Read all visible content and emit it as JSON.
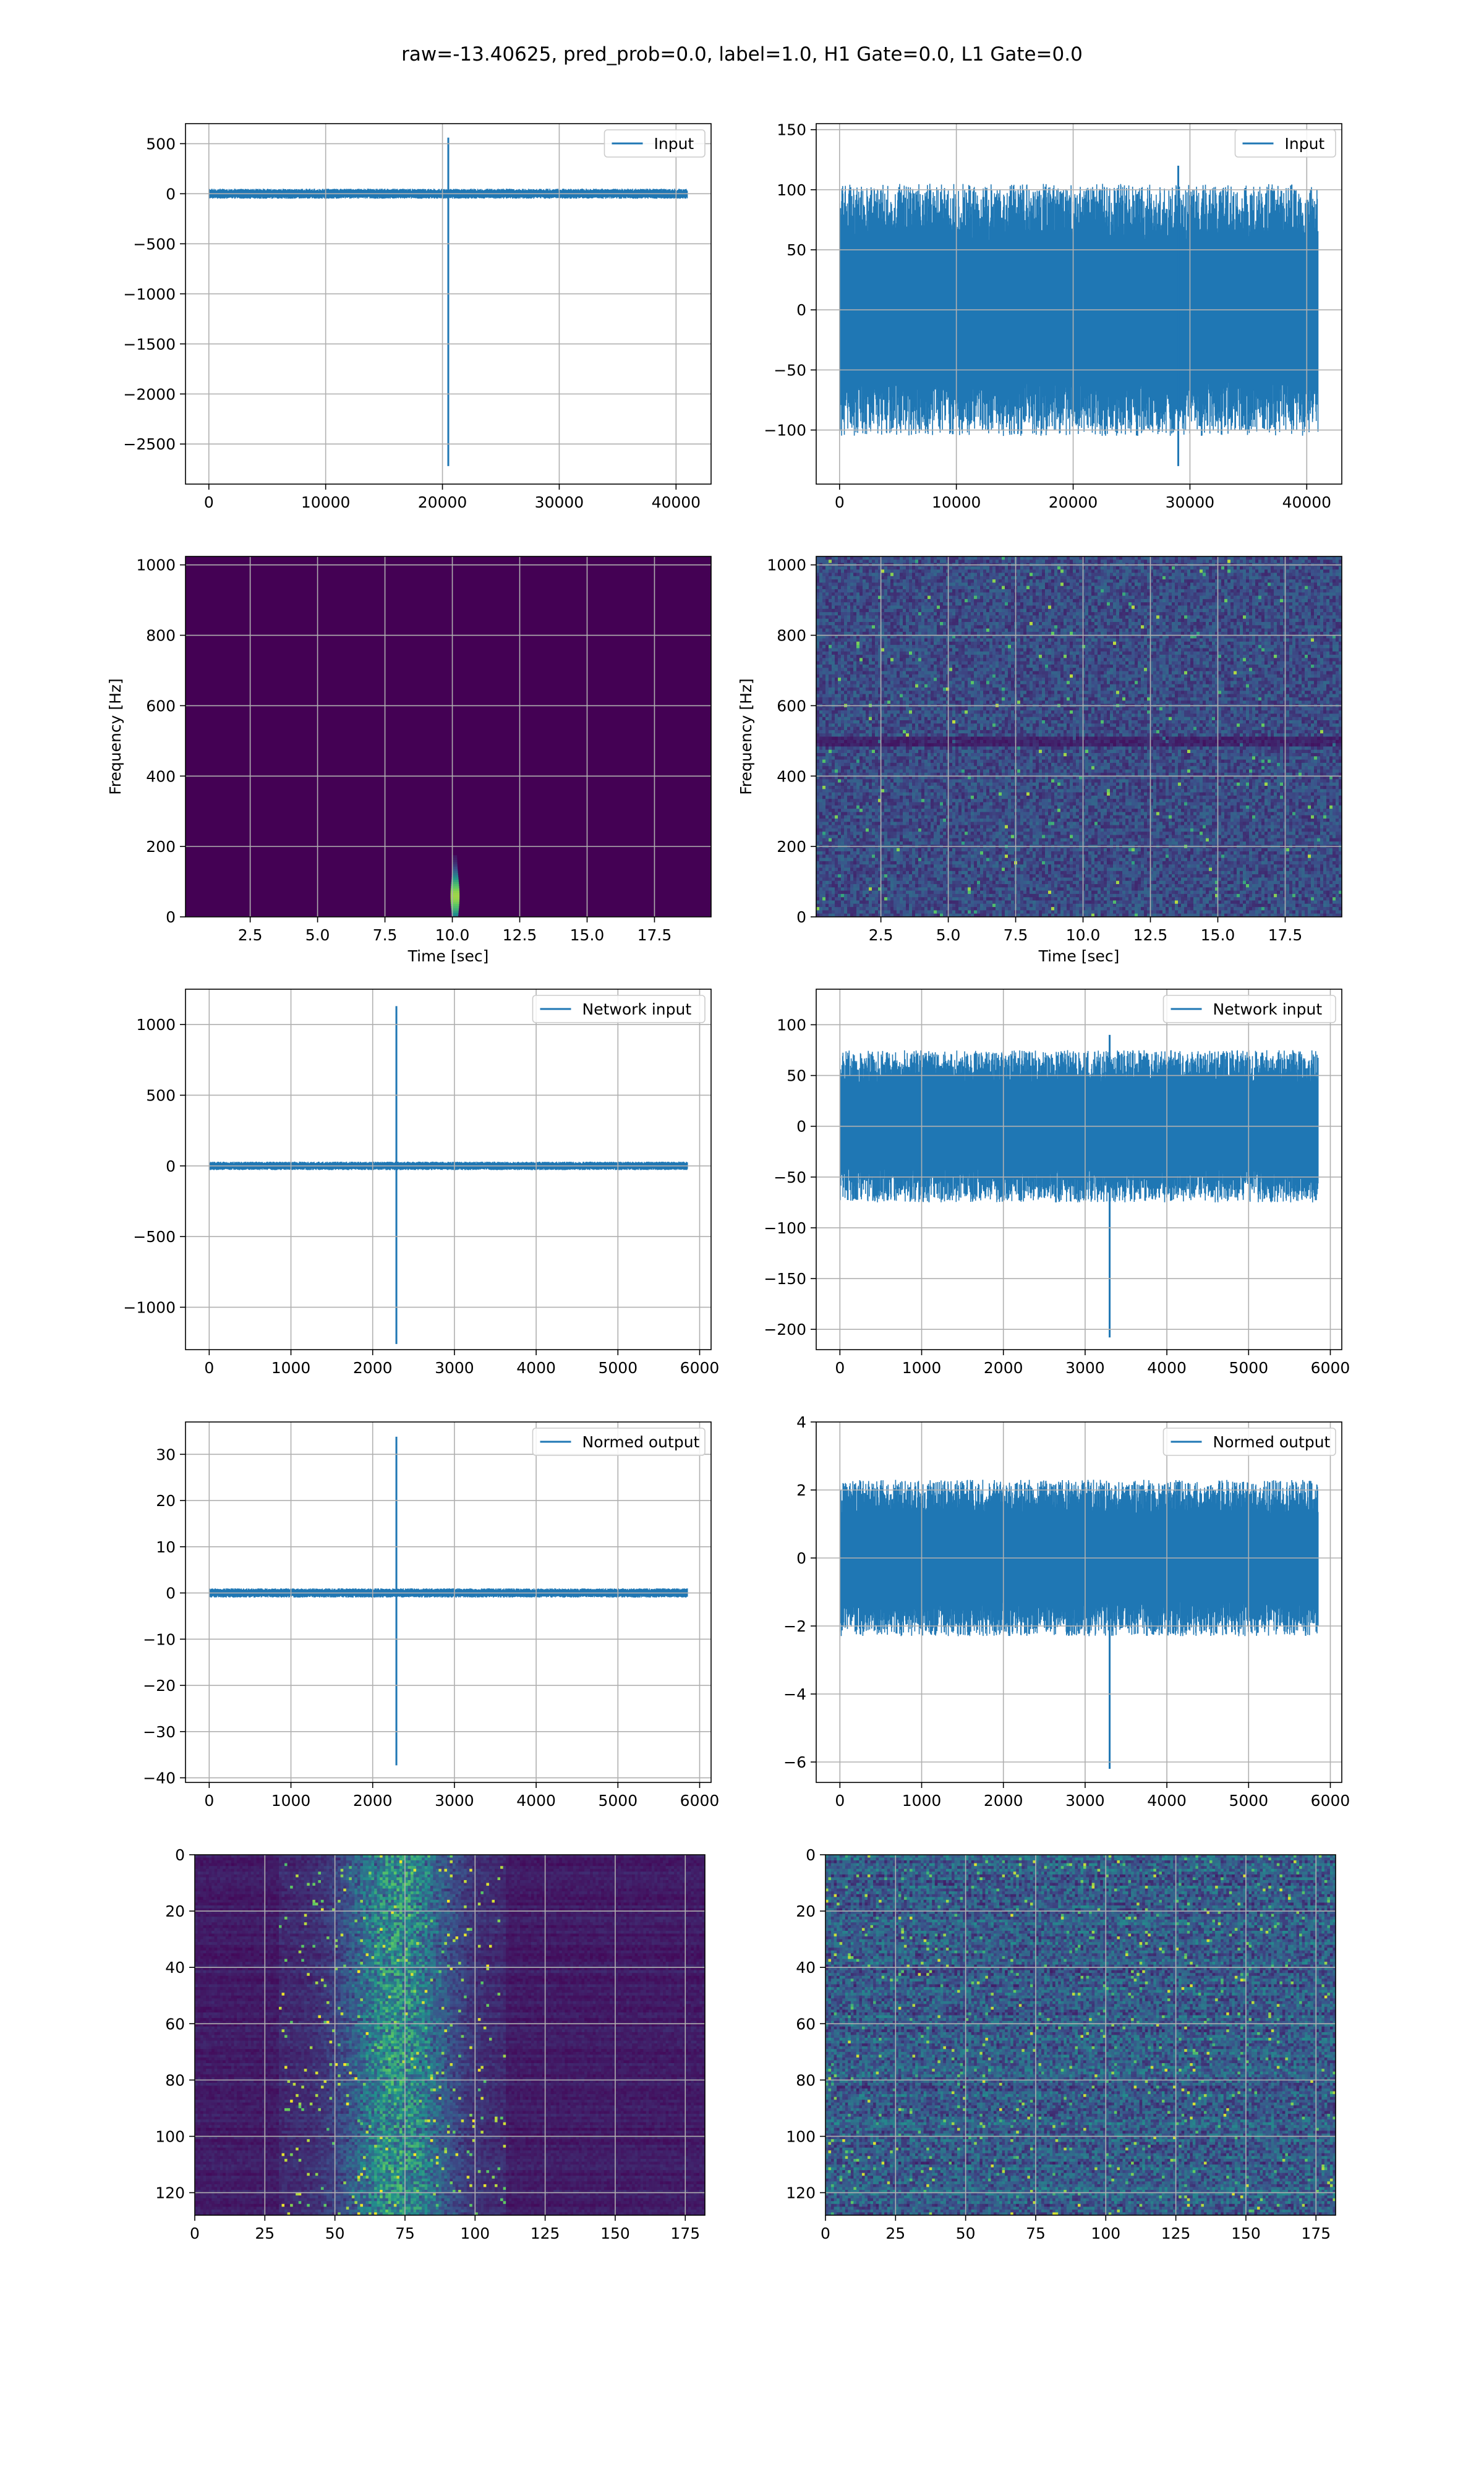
{
  "figure": {
    "title": "raw=-13.40625, pred_prob=0.0, label=1.0, H1 Gate=0.0, L1 Gate=0.0",
    "colors": {
      "line": "#1f77b4",
      "grid": "#b0b0b0",
      "viridis_dark": "#440154"
    }
  },
  "chart_data": [
    {
      "id": "h1-input",
      "type": "line",
      "legend": [
        "Input"
      ],
      "legend_position": "top-right",
      "grid": true,
      "xlim": [
        -2000,
        43000
      ],
      "ylim": [
        -2900,
        700
      ],
      "xticks": [
        0,
        10000,
        20000,
        30000,
        40000
      ],
      "yticks": [
        500,
        0,
        -500,
        -1000,
        -1500,
        -2000,
        -2500
      ],
      "signal": {
        "x_range": [
          0,
          40960
        ],
        "noise_amplitude": 50,
        "spikes": [
          {
            "x": 20500,
            "max": 560,
            "min": -2720
          }
        ]
      }
    },
    {
      "id": "l1-input",
      "type": "line",
      "legend": [
        "Input"
      ],
      "legend_position": "top-right",
      "grid": true,
      "xlim": [
        -2000,
        43000
      ],
      "ylim": [
        -145,
        155
      ],
      "xticks": [
        0,
        10000,
        20000,
        30000,
        40000
      ],
      "yticks": [
        150,
        100,
        50,
        0,
        -50,
        -100
      ],
      "signal": {
        "x_range": [
          0,
          40960
        ],
        "noise_amplitude": 105,
        "spikes": [
          {
            "x": 29000,
            "max": 120,
            "min": -130
          }
        ]
      }
    },
    {
      "id": "h1-spectrogram",
      "type": "heatmap",
      "xlabel": "Time [sec]",
      "ylabel": "Frequency [Hz]",
      "grid": true,
      "xlim": [
        0.1,
        19.6
      ],
      "ylim": [
        0,
        1024
      ],
      "xticks": [
        2.5,
        5.0,
        7.5,
        10.0,
        12.5,
        15.0,
        17.5
      ],
      "yticks": [
        0,
        200,
        400,
        600,
        800,
        1000
      ],
      "features": {
        "background_level": 0.0,
        "hot_spot": {
          "time": 10.1,
          "freq_max": 250,
          "peak_freq": 60,
          "peak_level": 0.85
        }
      }
    },
    {
      "id": "l1-spectrogram",
      "type": "heatmap",
      "xlabel": "Time [sec]",
      "ylabel": "Frequency [Hz]",
      "grid": true,
      "xlim": [
        0.1,
        19.6
      ],
      "ylim": [
        0,
        1024
      ],
      "xticks": [
        2.5,
        5.0,
        7.5,
        10.0,
        12.5,
        15.0,
        17.5
      ],
      "yticks": [
        0,
        200,
        400,
        600,
        800,
        1000
      ],
      "features": {
        "background_level": 0.3,
        "dark_band_freq": 500
      }
    },
    {
      "id": "h1-network-input",
      "type": "line",
      "legend": [
        "Network input"
      ],
      "legend_position": "top-right",
      "grid": true,
      "xlim": [
        -290,
        6140
      ],
      "ylim": [
        -1300,
        1250
      ],
      "xticks": [
        0,
        1000,
        2000,
        3000,
        4000,
        5000,
        6000
      ],
      "yticks": [
        1000,
        500,
        0,
        -500,
        -1000
      ],
      "signal": {
        "x_range": [
          0,
          5850
        ],
        "noise_amplitude": 30,
        "spikes": [
          {
            "x": 2290,
            "max": 1130,
            "min": -1260
          }
        ]
      }
    },
    {
      "id": "l1-network-input",
      "type": "line",
      "legend": [
        "Network input"
      ],
      "legend_position": "top-right",
      "grid": true,
      "xlim": [
        -290,
        6140
      ],
      "ylim": [
        -220,
        135
      ],
      "xticks": [
        0,
        1000,
        2000,
        3000,
        4000,
        5000,
        6000
      ],
      "yticks": [
        100,
        50,
        0,
        -50,
        -100,
        -150,
        -200
      ],
      "signal": {
        "x_range": [
          0,
          5850
        ],
        "noise_amplitude": 75,
        "spikes": [
          {
            "x": 3300,
            "max": 90,
            "min": -208
          }
        ]
      }
    },
    {
      "id": "h1-normed-output",
      "type": "line",
      "legend": [
        "Normed output"
      ],
      "legend_position": "top-right",
      "grid": true,
      "xlim": [
        -290,
        6140
      ],
      "ylim": [
        -41,
        37
      ],
      "xticks": [
        0,
        1000,
        2000,
        3000,
        4000,
        5000,
        6000
      ],
      "yticks": [
        30,
        20,
        10,
        0,
        -10,
        -20,
        -30,
        -40
      ],
      "signal": {
        "x_range": [
          0,
          5850
        ],
        "noise_amplitude": 1,
        "spikes": [
          {
            "x": 2290,
            "max": 33.8,
            "min": -37.3
          }
        ]
      }
    },
    {
      "id": "l1-normed-output",
      "type": "line",
      "legend": [
        "Normed output"
      ],
      "legend_position": "top-right",
      "grid": true,
      "xlim": [
        -290,
        6140
      ],
      "ylim": [
        -6.6,
        4.0
      ],
      "xticks": [
        0,
        1000,
        2000,
        3000,
        4000,
        5000,
        6000
      ],
      "yticks": [
        4,
        2,
        0,
        -2,
        -4,
        -6
      ],
      "signal": {
        "x_range": [
          0,
          5850
        ],
        "noise_amplitude": 2.3,
        "spikes": [
          {
            "x": 3300,
            "max": 2.0,
            "min": -6.2
          }
        ]
      }
    },
    {
      "id": "h1-feature-map",
      "type": "heatmap",
      "grid": true,
      "xlim": [
        0,
        182
      ],
      "ylim": [
        0,
        128
      ],
      "y_inverted": true,
      "xticks": [
        0,
        25,
        50,
        75,
        100,
        125,
        150,
        175
      ],
      "yticks": [
        0,
        20,
        40,
        60,
        80,
        100,
        120
      ],
      "features": {
        "rows": 128,
        "cols": 182,
        "active_band": [
          30,
          110
        ],
        "peak_column": 72
      }
    },
    {
      "id": "l1-feature-map",
      "type": "heatmap",
      "grid": true,
      "xlim": [
        0,
        182
      ],
      "ylim": [
        0,
        128
      ],
      "y_inverted": true,
      "xticks": [
        0,
        25,
        50,
        75,
        100,
        125,
        150,
        175
      ],
      "yticks": [
        0,
        20,
        40,
        60,
        80,
        100,
        120
      ],
      "features": {
        "rows": 128,
        "cols": 182,
        "background_level": 0.3
      }
    }
  ]
}
